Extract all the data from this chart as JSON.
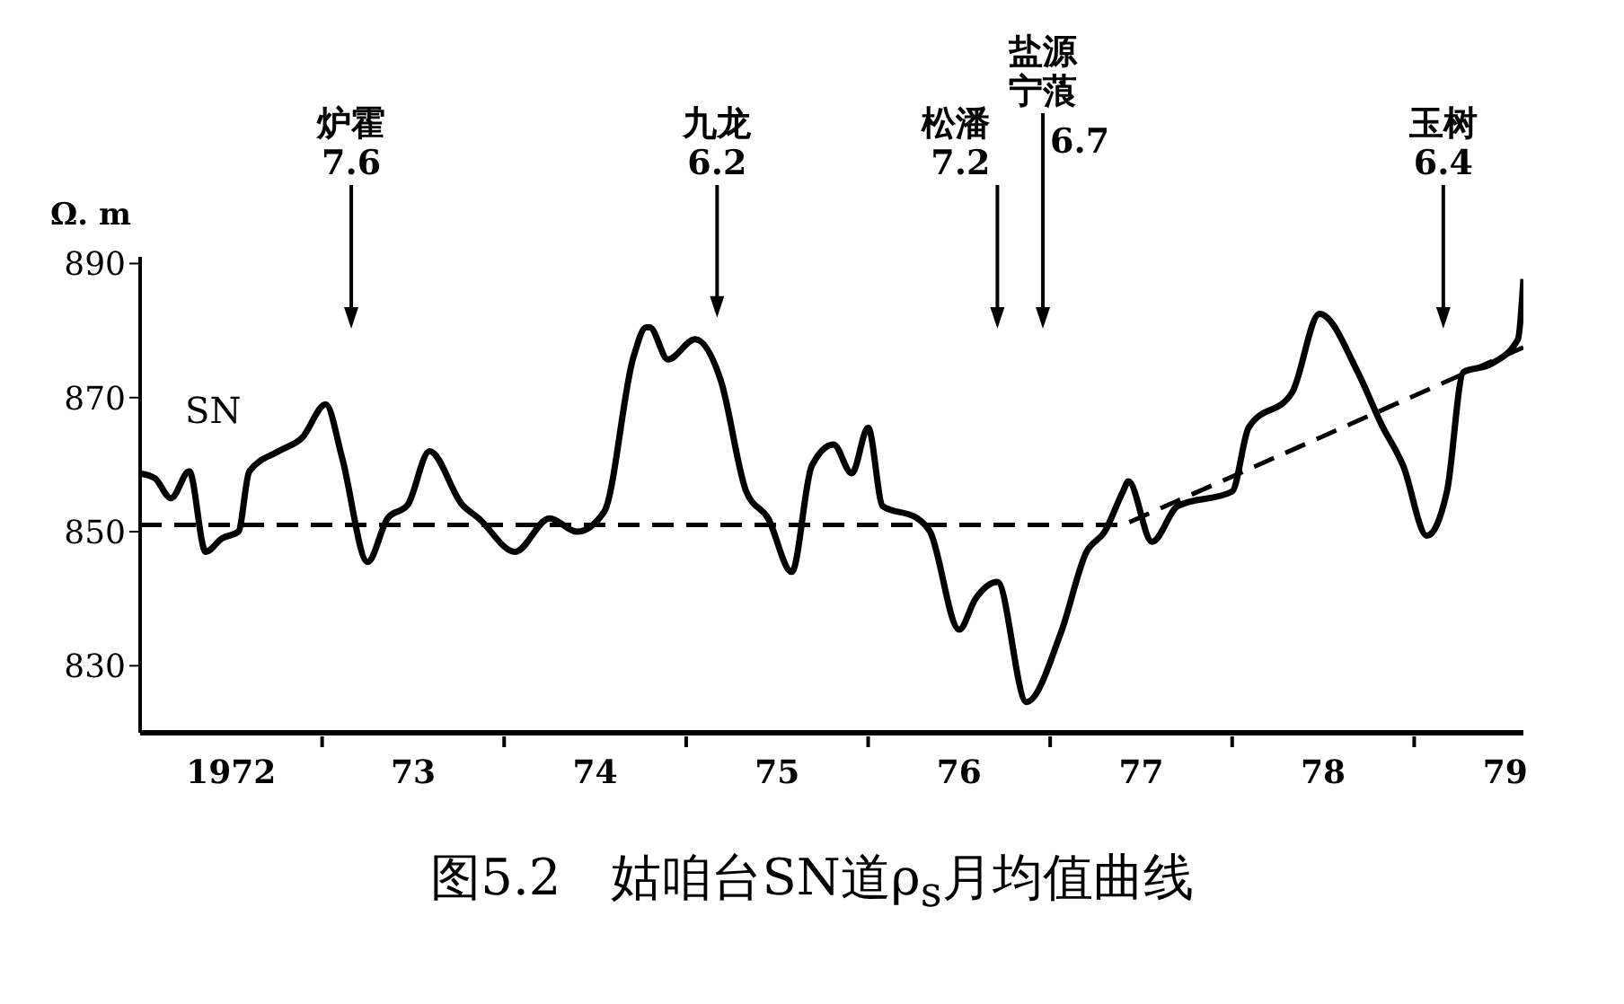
{
  "chart_data": {
    "type": "line",
    "title": "图5.2　姑咱台SN道ρ$_{s}$月均值曲线",
    "ylabel": "Ω. m",
    "xlim": [
      1971.5,
      1979.1
    ],
    "xticks": [
      {
        "value": 1972,
        "label": "1972"
      },
      {
        "value": 1972.5,
        "label": null
      },
      {
        "value": 1973,
        "label": "73"
      },
      {
        "value": 1973.5,
        "label": null
      },
      {
        "value": 1974,
        "label": "74"
      },
      {
        "value": 1974.5,
        "label": null
      },
      {
        "value": 1975,
        "label": "75"
      },
      {
        "value": 1975.5,
        "label": null
      },
      {
        "value": 1976,
        "label": "76"
      },
      {
        "value": 1976.5,
        "label": null
      },
      {
        "value": 1977,
        "label": "77"
      },
      {
        "value": 1977.5,
        "label": null
      },
      {
        "value": 1978,
        "label": "78"
      },
      {
        "value": 1978.5,
        "label": null
      },
      {
        "value": 1979,
        "label": "79"
      }
    ],
    "ylim": [
      820,
      891
    ],
    "yticks": [
      830,
      850,
      870,
      890
    ],
    "series": [
      {
        "name": "SN",
        "color": "#000000",
        "line_style": "solid",
        "x": [
          1971.5,
          1971.58,
          1971.67,
          1971.77,
          1971.86,
          1971.95,
          1972.04,
          1972.1,
          1972.26,
          1972.39,
          1972.52,
          1972.61,
          1972.75,
          1972.86,
          1972.97,
          1973.09,
          1973.27,
          1973.36,
          1973.56,
          1973.75,
          1973.9,
          1974.05,
          1974.21,
          1974.28,
          1974.3,
          1974.4,
          1974.55,
          1974.69,
          1974.83,
          1974.95,
          1975.08,
          1975.19,
          1975.31,
          1975.41,
          1975.5,
          1975.58,
          1975.77,
          1975.84,
          1976.0,
          1976.09,
          1976.21,
          1976.37,
          1976.56,
          1976.7,
          1976.8,
          1976.9,
          1976.93,
          1977.06,
          1977.2,
          1977.5,
          1977.59,
          1977.83,
          1977.98,
          1978.19,
          1978.32,
          1978.44,
          1978.57,
          1978.68,
          1978.77,
          1978.92,
          1979.07,
          1979.1
        ],
        "values": [
          858.7,
          858,
          855,
          859,
          847,
          849,
          850,
          859,
          862,
          864,
          869,
          861,
          845.5,
          852,
          854,
          862,
          854,
          852,
          847,
          852,
          850,
          853,
          876,
          880.5,
          880.5,
          875.7,
          878.7,
          872.6,
          856,
          852,
          844,
          859.8,
          863,
          858.7,
          865.5,
          853.8,
          852,
          850,
          835.4,
          840,
          842.5,
          824.6,
          835,
          847,
          850,
          856,
          857.5,
          848.5,
          853.8,
          856,
          865.5,
          870.8,
          882.5,
          873.8,
          866,
          859.8,
          849.4,
          856,
          873.8,
          875,
          878.7,
          887.7
        ]
      },
      {
        "color": "#000000",
        "line_style": "dashed",
        "x": [
          1971.5,
          1976.9,
          1979.1
        ],
        "values": [
          851,
          851,
          877.5
        ]
      }
    ],
    "ref_lines": [
      {
        "axis": "x",
        "value": 1972.66,
        "label": "炉霍\n7.6"
      },
      {
        "axis": "x",
        "value": 1974.67,
        "label": "九龙\n6.2"
      },
      {
        "axis": "x",
        "value": 1976.21,
        "label": "松潘\n7.2"
      },
      {
        "axis": "x",
        "value": 1976.46,
        "label": "盐源宁蒗\n6.7"
      },
      {
        "axis": "x",
        "value": 1978.66,
        "label": "玉树\n6.4"
      }
    ]
  }
}
